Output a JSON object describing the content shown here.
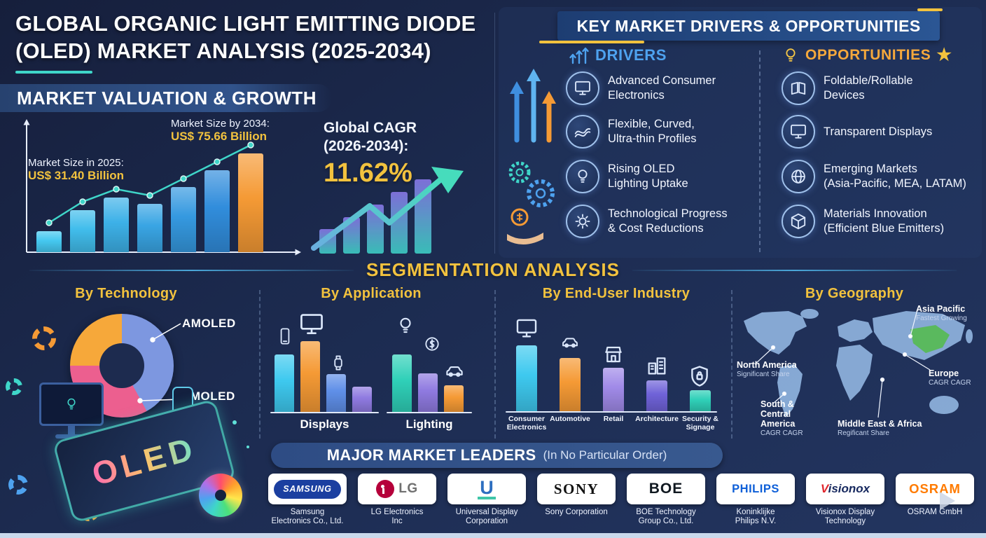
{
  "page": {
    "title_line1": "GLOBAL ORGANIC LIGHT EMITTING DIODE",
    "title_line2": "(OLED) MARKET ANALYSIS (2025-2034)"
  },
  "valuation": {
    "section_title": "MARKET VALUATION & GROWTH",
    "size_2025_label": "Market Size in 2025:",
    "size_2025_value": "US$ 31.40 Billion",
    "size_2034_label": "Market Size by 2034:",
    "size_2034_value": "US$ 75.66 Billion",
    "cagr_line1": "Global CAGR",
    "cagr_line2": "(2026-2034):",
    "cagr_value": "11.62%"
  },
  "drivers_opportunities": {
    "section_title": "KEY MARKET DRIVERS & OPPORTUNITIES",
    "drivers_title": "DRIVERS",
    "star": "★",
    "drivers": [
      {
        "icon": "monitor-icon",
        "icon_ref": "#i-monitor",
        "line1": "Advanced Consumer",
        "line2": "Electronics"
      },
      {
        "icon": "flexible-display-icon",
        "icon_ref": "#i-flex",
        "line1": "Flexible, Curved,",
        "line2": "Ultra-thin Profiles"
      },
      {
        "icon": "lightbulb-icon",
        "icon_ref": "#i-bulb",
        "line1": "Rising OLED",
        "line2": "Lighting Uptake"
      },
      {
        "icon": "gear-icon",
        "icon_ref": "#i-gear",
        "line1": "Technological Progress",
        "line2": "& Cost Reductions"
      }
    ],
    "opportunities_title": "OPPORTUNITIES",
    "opportunities": [
      {
        "icon": "foldable-device-icon",
        "icon_ref": "#i-fold",
        "line1": "Foldable/Rollable",
        "line2": "Devices"
      },
      {
        "icon": "transparent-display-icon",
        "icon_ref": "#i-monitor",
        "line1": "Transparent Displays",
        "line2": ""
      },
      {
        "icon": "globe-icon",
        "icon_ref": "#i-globe",
        "line1": "Emerging Markets",
        "line2": "(Asia-Pacific, MEA, LATAM)"
      },
      {
        "icon": "materials-icon",
        "icon_ref": "#i-cube",
        "line1": "Materials Innovation",
        "line2": "(Efficient Blue Emitters)"
      }
    ]
  },
  "segmentation": {
    "section_title": "SEGMENTATION ANALYSIS",
    "technology": {
      "title": "By Technology",
      "label_amoled": "AMOLED",
      "label_pmoled": "PMOLED",
      "device_text": "OLED"
    },
    "application": {
      "title": "By Application",
      "group1_label": "Displays",
      "group2_label": "Lighting"
    },
    "end_user": {
      "title": "By End-User Industry",
      "categories": [
        {
          "line1": "Consumer",
          "line2": "Electronics"
        },
        {
          "line1": "Automotive",
          "line2": ""
        },
        {
          "line1": "Retail",
          "line2": ""
        },
        {
          "line1": "Architecture",
          "line2": ""
        },
        {
          "line1": "Security &",
          "line2": "Signage"
        }
      ]
    },
    "geography": {
      "title": "By Geography",
      "regions": [
        {
          "name": "North America",
          "note": "Significant Share"
        },
        {
          "name": "South & Central America",
          "note": "CAGR CAGR"
        },
        {
          "name": "Asia Pacific",
          "note": "Fastest Growing"
        },
        {
          "name": "Europe",
          "note": "CAGR CAGR"
        },
        {
          "name": "Middle East & Africa",
          "note": "Regificant Share"
        }
      ]
    }
  },
  "leaders": {
    "title": "MAJOR MARKET LEADERS",
    "subtitle": "(In No Particular Order)",
    "companies": [
      {
        "logo_text": "SAMSUNG",
        "caption_line1": "Samsung",
        "caption_line2": "Electronics Co., Ltd."
      },
      {
        "logo_text": "LG",
        "caption_line1": "LG Electronics",
        "caption_line2": "Inc"
      },
      {
        "logo_text": "U",
        "caption_line1": "Universal Display",
        "caption_line2": "Corporation"
      },
      {
        "logo_text": "SONY",
        "caption_line1": "Sony Corporation",
        "caption_line2": ""
      },
      {
        "logo_text": "BOE",
        "caption_line1": "BOE Technology",
        "caption_line2": "Group Co., Ltd."
      },
      {
        "logo_text": "PHILIPS",
        "caption_line1": "Koninklijke",
        "caption_line2": "Philips N.V."
      },
      {
        "logo_text": "Visionox",
        "caption_line1": "Visionox Display",
        "caption_line2": "Technology"
      },
      {
        "logo_text": "OSRAM",
        "caption_line1": "OSRAM GmbH",
        "caption_line2": ""
      }
    ]
  },
  "colors": {
    "background_navy": "#1c2b50",
    "accent_gold": "#f2c23e",
    "accent_teal": "#3fd6c9",
    "accent_blue": "#4ea2ef",
    "accent_orange": "#f59a35"
  },
  "chart_data": [
    {
      "id": "market_growth",
      "type": "bar",
      "title": "Market Valuation & Growth",
      "max": 100,
      "values_relative": [
        20,
        40,
        52,
        46,
        62,
        78,
        94
      ],
      "colors": [
        "#45c8f0",
        "#41bdec",
        "#3db1e8",
        "#39a5e4",
        "#3599e0",
        "#318ddc",
        "#f59a35"
      ],
      "line_overlay": true,
      "annotations": [
        {
          "label": "Market Size in 2025:",
          "value": "US$ 31.40 Billion"
        },
        {
          "label": "Market Size by 2034:",
          "value": "US$ 75.66 Billion"
        },
        {
          "label": "Global CAGR (2026-2034):",
          "value": "11.62%"
        }
      ]
    },
    {
      "id": "technology_share",
      "type": "pie",
      "labels": [
        "AMOLED",
        "PMOLED",
        "unlabeled"
      ],
      "values": [
        42,
        33,
        25
      ],
      "colors": [
        "#7d97e0",
        "#ec5f8f",
        "#f6a83a"
      ]
    },
    {
      "id": "application_displays",
      "type": "bar",
      "group": "Displays",
      "max": 100,
      "values_relative": [
        68,
        84,
        45,
        30
      ],
      "colors": [
        "#3ec9ef",
        "#f59a35",
        "#5f8fe8",
        "#8f7ae0"
      ]
    },
    {
      "id": "application_lighting",
      "type": "bar",
      "group": "Lighting",
      "max": 100,
      "values_relative": [
        68,
        46,
        32
      ],
      "colors": [
        "#2fd0b8",
        "#8f7ae0",
        "#f59a35"
      ]
    },
    {
      "id": "end_user_industry",
      "type": "bar",
      "categories": [
        "Consumer Electronics",
        "Automotive",
        "Retail",
        "Architecture",
        "Security & Signage"
      ],
      "max": 100,
      "values_relative": [
        74,
        60,
        49,
        35,
        24
      ],
      "colors": [
        "#3ec9ef",
        "#f59a35",
        "#a08ae8",
        "#6f62d8",
        "#2fd0b8"
      ]
    }
  ]
}
